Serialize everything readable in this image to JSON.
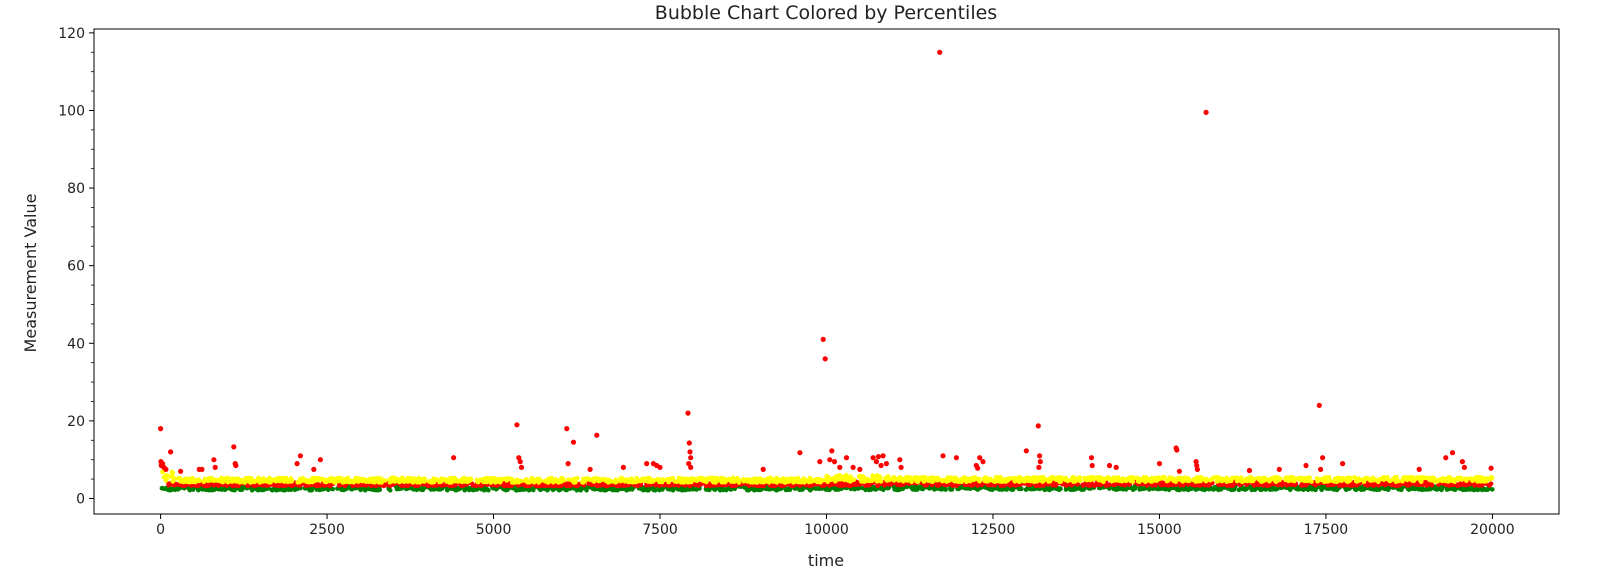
{
  "chart_data": {
    "type": "scatter",
    "title": "Bubble Chart Colored by Percentiles",
    "xlabel": "time",
    "ylabel": "Measurement Value",
    "xlim": [
      -1000,
      21000
    ],
    "ylim": [
      -4,
      121
    ],
    "xticks": [
      0,
      2500,
      5000,
      7500,
      10000,
      12500,
      15000,
      17500,
      20000
    ],
    "yticks": [
      0,
      20,
      40,
      60,
      80,
      100,
      120
    ],
    "grid": false,
    "legend": "none",
    "colors": {
      "low": "#008000",
      "mid": "#ff0000",
      "high": "#ffff00",
      "outlier": "#ff0000"
    },
    "bands": [
      {
        "name": "low",
        "color": "#008000",
        "segments": [
          [
            0,
            10000,
            2.1,
            3.2
          ],
          [
            10000,
            20000,
            2.2,
            3.2
          ]
        ]
      },
      {
        "name": "mid",
        "color": "#ff0000",
        "segments": [
          [
            100,
            10000,
            3.2,
            4.1
          ],
          [
            10000,
            20000,
            3.3,
            4.3
          ]
        ]
      },
      {
        "name": "high",
        "color": "#ffff00",
        "segments": [
          [
            0,
            200,
            4.2,
            7.0
          ],
          [
            200,
            10000,
            4.1,
            5.3
          ],
          [
            10000,
            11000,
            4.3,
            6.0
          ],
          [
            11000,
            20000,
            4.3,
            5.5
          ]
        ]
      }
    ],
    "outliers": [
      [
        0,
        18
      ],
      [
        5,
        9.5
      ],
      [
        10,
        8.5
      ],
      [
        30,
        9
      ],
      [
        50,
        8
      ],
      [
        80,
        7.5
      ],
      [
        150,
        12
      ],
      [
        300,
        7
      ],
      [
        580,
        7.5
      ],
      [
        620,
        7.5
      ],
      [
        800,
        10
      ],
      [
        820,
        8
      ],
      [
        1100,
        13.3
      ],
      [
        1120,
        9
      ],
      [
        1130,
        8.5
      ],
      [
        2050,
        9
      ],
      [
        2100,
        11
      ],
      [
        2400,
        10
      ],
      [
        2300,
        7.5
      ],
      [
        4400,
        10.5
      ],
      [
        5350,
        19
      ],
      [
        5380,
        10.5
      ],
      [
        5400,
        9.5
      ],
      [
        5420,
        8
      ],
      [
        6100,
        18
      ],
      [
        6120,
        9
      ],
      [
        6200,
        14.5
      ],
      [
        6450,
        7.5
      ],
      [
        6550,
        16.3
      ],
      [
        6950,
        8
      ],
      [
        7300,
        9
      ],
      [
        7400,
        9
      ],
      [
        7450,
        8.5
      ],
      [
        7500,
        8
      ],
      [
        7920,
        22
      ],
      [
        7940,
        14.3
      ],
      [
        7950,
        12
      ],
      [
        7960,
        10.5
      ],
      [
        7930,
        9
      ],
      [
        7960,
        8
      ],
      [
        9050,
        7.5
      ],
      [
        9600,
        11.8
      ],
      [
        9950,
        41
      ],
      [
        9980,
        36
      ],
      [
        9900,
        9.5
      ],
      [
        10050,
        10
      ],
      [
        10080,
        12.3
      ],
      [
        10120,
        9.5
      ],
      [
        10200,
        8
      ],
      [
        10300,
        10.5
      ],
      [
        10400,
        8
      ],
      [
        10500,
        7.5
      ],
      [
        10700,
        10.5
      ],
      [
        10750,
        9.5
      ],
      [
        10780,
        10.8
      ],
      [
        10820,
        8.5
      ],
      [
        10850,
        11
      ],
      [
        10900,
        9
      ],
      [
        11100,
        10
      ],
      [
        11120,
        8
      ],
      [
        11700,
        115
      ],
      [
        11750,
        11
      ],
      [
        11950,
        10.5
      ],
      [
        12250,
        8.5
      ],
      [
        12300,
        10.5
      ],
      [
        12350,
        9.5
      ],
      [
        12270,
        7.8
      ],
      [
        13000,
        12.3
      ],
      [
        13180,
        18.7
      ],
      [
        13200,
        11
      ],
      [
        13210,
        9.5
      ],
      [
        13190,
        8
      ],
      [
        13980,
        10.5
      ],
      [
        13990,
        8.5
      ],
      [
        14250,
        8.5
      ],
      [
        14350,
        8
      ],
      [
        15000,
        9
      ],
      [
        15250,
        13
      ],
      [
        15260,
        12.5
      ],
      [
        15300,
        7
      ],
      [
        15550,
        9.5
      ],
      [
        15560,
        8.5
      ],
      [
        15570,
        7.5
      ],
      [
        15700,
        99.5
      ],
      [
        16350,
        7.2
      ],
      [
        16800,
        7.5
      ],
      [
        17200,
        8.5
      ],
      [
        17400,
        24
      ],
      [
        17420,
        7.5
      ],
      [
        17450,
        10.5
      ],
      [
        17750,
        9
      ],
      [
        18900,
        7.5
      ],
      [
        19300,
        10.5
      ],
      [
        19400,
        11.8
      ],
      [
        19550,
        9.5
      ],
      [
        19580,
        8
      ],
      [
        19980,
        7.8
      ]
    ]
  }
}
